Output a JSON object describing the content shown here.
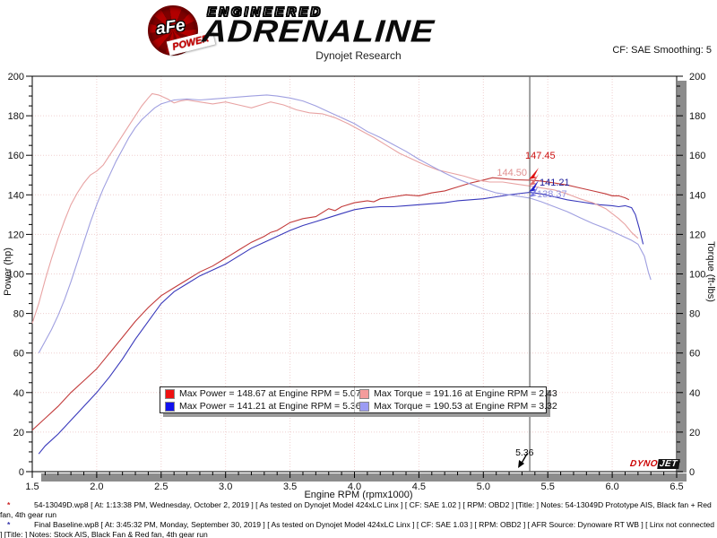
{
  "header": {
    "logo": {
      "afe": "aFe",
      "power": "POWER",
      "engineered": "ENGINEERED",
      "adrenaline": "ADRENALINE"
    },
    "subtitle": "Dynojet Research",
    "smoothing": "CF: SAE Smoothing: 5"
  },
  "branding": {
    "dynojet_dyno": "DYNO",
    "dynojet_jet": "JET"
  },
  "chart_data": {
    "type": "line",
    "xlabel": "Engine RPM (rpmx1000)",
    "ylabel_left": "Power (hp)",
    "ylabel_right": "Torque (ft-lbs)",
    "xlim": [
      1.5,
      6.5
    ],
    "ylim": [
      0,
      200
    ],
    "x_major_step": 0.5,
    "x_minor_step": 0.1,
    "y_major_step": 20,
    "y_minor_step": 5,
    "grid": "dotted",
    "grid_color": "#efcfcf",
    "cursor": {
      "rpm": 5.36,
      "label": "5.36"
    },
    "series": [
      {
        "name": "54-13049D-power",
        "unit": "hp",
        "color": "#c23a3a",
        "points": [
          [
            1.5,
            21
          ],
          [
            1.55,
            24
          ],
          [
            1.6,
            27
          ],
          [
            1.7,
            33
          ],
          [
            1.8,
            40
          ],
          [
            1.9,
            46
          ],
          [
            2.0,
            52
          ],
          [
            2.1,
            60
          ],
          [
            2.2,
            68
          ],
          [
            2.3,
            76
          ],
          [
            2.4,
            83
          ],
          [
            2.5,
            89
          ],
          [
            2.6,
            93
          ],
          [
            2.7,
            97
          ],
          [
            2.8,
            101
          ],
          [
            2.9,
            104
          ],
          [
            3.0,
            108
          ],
          [
            3.1,
            112
          ],
          [
            3.2,
            116
          ],
          [
            3.3,
            119
          ],
          [
            3.35,
            121
          ],
          [
            3.4,
            122
          ],
          [
            3.5,
            126
          ],
          [
            3.6,
            128
          ],
          [
            3.7,
            129
          ],
          [
            3.8,
            133
          ],
          [
            3.85,
            132
          ],
          [
            3.9,
            134
          ],
          [
            4.0,
            136
          ],
          [
            4.1,
            137
          ],
          [
            4.15,
            136.5
          ],
          [
            4.2,
            138
          ],
          [
            4.3,
            139
          ],
          [
            4.4,
            140
          ],
          [
            4.5,
            139.5
          ],
          [
            4.6,
            141
          ],
          [
            4.7,
            142
          ],
          [
            4.8,
            144
          ],
          [
            4.9,
            146
          ],
          [
            5.0,
            147.5
          ],
          [
            5.07,
            148.67
          ],
          [
            5.15,
            148.2
          ],
          [
            5.25,
            147.6
          ],
          [
            5.36,
            147.45
          ],
          [
            5.45,
            147
          ],
          [
            5.55,
            146
          ],
          [
            5.65,
            145
          ],
          [
            5.75,
            143.5
          ],
          [
            5.85,
            142
          ],
          [
            5.95,
            140.5
          ],
          [
            6.0,
            139.5
          ],
          [
            6.05,
            139.5
          ],
          [
            6.1,
            138.5
          ],
          [
            6.13,
            137.5
          ]
        ]
      },
      {
        "name": "final-baseline-power",
        "unit": "hp",
        "color": "#3838bb",
        "points": [
          [
            1.55,
            9
          ],
          [
            1.6,
            13
          ],
          [
            1.65,
            16
          ],
          [
            1.7,
            19
          ],
          [
            1.8,
            26
          ],
          [
            1.9,
            33
          ],
          [
            2.0,
            40
          ],
          [
            2.1,
            48
          ],
          [
            2.2,
            57
          ],
          [
            2.3,
            67
          ],
          [
            2.4,
            76
          ],
          [
            2.5,
            85
          ],
          [
            2.6,
            91
          ],
          [
            2.7,
            95
          ],
          [
            2.8,
            99
          ],
          [
            2.9,
            102
          ],
          [
            3.0,
            105
          ],
          [
            3.1,
            109
          ],
          [
            3.2,
            113
          ],
          [
            3.3,
            116
          ],
          [
            3.4,
            119
          ],
          [
            3.5,
            122
          ],
          [
            3.6,
            124.5
          ],
          [
            3.7,
            126.5
          ],
          [
            3.8,
            128.5
          ],
          [
            3.9,
            130.5
          ],
          [
            4.0,
            132.5
          ],
          [
            4.1,
            133.5
          ],
          [
            4.2,
            134
          ],
          [
            4.3,
            134
          ],
          [
            4.4,
            134.5
          ],
          [
            4.5,
            135
          ],
          [
            4.6,
            135.5
          ],
          [
            4.7,
            136
          ],
          [
            4.8,
            137
          ],
          [
            4.9,
            137.5
          ],
          [
            5.0,
            138
          ],
          [
            5.1,
            139
          ],
          [
            5.2,
            140
          ],
          [
            5.3,
            140.8
          ],
          [
            5.36,
            141.21
          ],
          [
            5.45,
            140.5
          ],
          [
            5.55,
            139
          ],
          [
            5.65,
            137.5
          ],
          [
            5.75,
            136.5
          ],
          [
            5.85,
            135.5
          ],
          [
            5.9,
            135
          ],
          [
            6.0,
            134.5
          ],
          [
            6.05,
            134
          ],
          [
            6.1,
            134.5
          ],
          [
            6.15,
            133.5
          ],
          [
            6.18,
            130
          ],
          [
            6.21,
            123
          ],
          [
            6.24,
            115
          ]
        ]
      },
      {
        "name": "54-13049D-torque",
        "unit": "ft-lbs",
        "color": "#e8a3a3",
        "points": [
          [
            1.5,
            75
          ],
          [
            1.55,
            85
          ],
          [
            1.6,
            97
          ],
          [
            1.65,
            108
          ],
          [
            1.7,
            118
          ],
          [
            1.75,
            127
          ],
          [
            1.8,
            135
          ],
          [
            1.85,
            141
          ],
          [
            1.9,
            146
          ],
          [
            1.95,
            150
          ],
          [
            2.0,
            152
          ],
          [
            2.05,
            155
          ],
          [
            2.1,
            160
          ],
          [
            2.15,
            165
          ],
          [
            2.2,
            170
          ],
          [
            2.25,
            175
          ],
          [
            2.3,
            180
          ],
          [
            2.35,
            185
          ],
          [
            2.4,
            189
          ],
          [
            2.43,
            191.16
          ],
          [
            2.48,
            190.5
          ],
          [
            2.55,
            188.5
          ],
          [
            2.6,
            186.5
          ],
          [
            2.65,
            187.5
          ],
          [
            2.7,
            188
          ],
          [
            2.8,
            187
          ],
          [
            2.9,
            186
          ],
          [
            3.0,
            187
          ],
          [
            3.1,
            185.5
          ],
          [
            3.2,
            184
          ],
          [
            3.3,
            186
          ],
          [
            3.35,
            187
          ],
          [
            3.45,
            185.5
          ],
          [
            3.55,
            183
          ],
          [
            3.65,
            181.5
          ],
          [
            3.75,
            181
          ],
          [
            3.85,
            179
          ],
          [
            3.95,
            176
          ],
          [
            4.05,
            172.5
          ],
          [
            4.15,
            169
          ],
          [
            4.25,
            165
          ],
          [
            4.35,
            161
          ],
          [
            4.45,
            158
          ],
          [
            4.55,
            155
          ],
          [
            4.65,
            152.5
          ],
          [
            4.75,
            151
          ],
          [
            4.85,
            149.5
          ],
          [
            4.95,
            147.5
          ],
          [
            5.05,
            146.5
          ],
          [
            5.15,
            146.5
          ],
          [
            5.25,
            145.5
          ],
          [
            5.36,
            144.5
          ],
          [
            5.45,
            143.5
          ],
          [
            5.55,
            142.5
          ],
          [
            5.65,
            140.5
          ],
          [
            5.75,
            138
          ],
          [
            5.85,
            136
          ],
          [
            5.95,
            133
          ],
          [
            6.05,
            128
          ],
          [
            6.1,
            125
          ],
          [
            6.15,
            121
          ],
          [
            6.2,
            118
          ]
        ]
      },
      {
        "name": "final-baseline-torque",
        "unit": "ft-lbs",
        "color": "#9f9fe0",
        "points": [
          [
            1.55,
            60
          ],
          [
            1.6,
            66
          ],
          [
            1.65,
            72
          ],
          [
            1.7,
            79
          ],
          [
            1.75,
            87
          ],
          [
            1.8,
            96
          ],
          [
            1.85,
            106
          ],
          [
            1.9,
            116
          ],
          [
            1.95,
            126
          ],
          [
            2.0,
            135
          ],
          [
            2.05,
            143
          ],
          [
            2.1,
            150
          ],
          [
            2.15,
            157
          ],
          [
            2.2,
            163
          ],
          [
            2.25,
            169
          ],
          [
            2.3,
            174
          ],
          [
            2.35,
            178
          ],
          [
            2.4,
            181
          ],
          [
            2.45,
            184
          ],
          [
            2.5,
            186
          ],
          [
            2.6,
            188
          ],
          [
            2.7,
            188.5
          ],
          [
            2.8,
            188
          ],
          [
            2.9,
            188.5
          ],
          [
            3.0,
            189
          ],
          [
            3.1,
            189.5
          ],
          [
            3.2,
            190
          ],
          [
            3.32,
            190.53
          ],
          [
            3.4,
            190
          ],
          [
            3.5,
            189
          ],
          [
            3.6,
            187.5
          ],
          [
            3.7,
            185
          ],
          [
            3.8,
            182
          ],
          [
            3.9,
            179
          ],
          [
            4.0,
            176
          ],
          [
            4.1,
            172
          ],
          [
            4.2,
            169
          ],
          [
            4.3,
            165.5
          ],
          [
            4.4,
            162
          ],
          [
            4.5,
            158
          ],
          [
            4.6,
            154.5
          ],
          [
            4.7,
            151
          ],
          [
            4.8,
            148
          ],
          [
            4.9,
            145.5
          ],
          [
            5.0,
            143
          ],
          [
            5.1,
            141
          ],
          [
            5.2,
            140
          ],
          [
            5.3,
            139
          ],
          [
            5.36,
            138.37
          ],
          [
            5.45,
            136.5
          ],
          [
            5.55,
            134
          ],
          [
            5.65,
            131.5
          ],
          [
            5.75,
            128.5
          ],
          [
            5.85,
            125.5
          ],
          [
            5.95,
            123
          ],
          [
            6.05,
            120
          ],
          [
            6.15,
            117
          ],
          [
            6.2,
            115
          ],
          [
            6.25,
            109
          ],
          [
            6.28,
            101
          ],
          [
            6.3,
            97
          ]
        ]
      }
    ],
    "annotations": [
      {
        "text": "147.45",
        "color": "#cc1111",
        "x": 586,
        "y": 177,
        "anchor": "start"
      },
      {
        "text": "144.50",
        "color": "#e09090",
        "x": 588,
        "y": 196,
        "anchor": "end"
      },
      {
        "text": "141.21",
        "color": "#1a1a99",
        "x": 602,
        "y": 207,
        "anchor": "start"
      },
      {
        "text": "138.37",
        "color": "#9090e0",
        "x": 599,
        "y": 220,
        "anchor": "start"
      }
    ],
    "cursor_markers": [
      {
        "color": "#e01010",
        "y": 200
      },
      {
        "color": "#e07070",
        "y": 207
      },
      {
        "color": "#2020cc",
        "y": 214
      },
      {
        "color": "#8080e0",
        "y": 220
      }
    ],
    "legend": {
      "rows": [
        [
          {
            "color": "#ee1111",
            "text": "Max Power = 148.67 at Engine RPM = 5.07"
          },
          {
            "color": "#f49c9c",
            "text": "Max Torque = 191.16 at Engine RPM = 2.43"
          }
        ],
        [
          {
            "color": "#1111ee",
            "text": "Max Power = 141.21 at Engine RPM = 5.36"
          },
          {
            "color": "#9c9cf4",
            "text": "Max Torque = 190.53 at Engine RPM = 3.32"
          }
        ]
      ]
    }
  },
  "footer": {
    "lines": [
      {
        "bullet": "*",
        "bullet_color": "#cc2222",
        "text": "54-13049D.wp8 [ At: 1:13:38 PM, Wednesday, October 2, 2019 ] [ As tested on Dynojet Model 424xLC Linx ] [ CF: SAE 1.02 ] [ RPM: OBD2 ] [Title: ]  Notes: 54-13049D Prototype AIS, Black fan + Red fan, 4th gear run"
      },
      {
        "bullet": "*",
        "bullet_color": "#3333aa",
        "text": "Final Baseline.wp8 [ At: 3:45:32 PM, Monday, September 30, 2019 ] [ As tested on Dynojet Model 424xLC Linx ] [ CF: SAE 1.03 ] [ RPM: OBD2 ] [ AFR Source: Dynoware RT WB ] [ Linx not connected ] [Title: ]  Notes: Stock AIS, Black Fan & Red fan, 4th gear run"
      }
    ]
  }
}
